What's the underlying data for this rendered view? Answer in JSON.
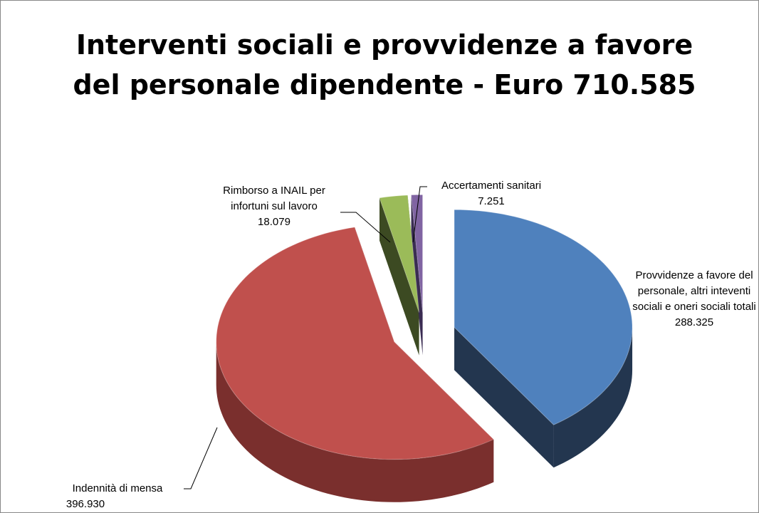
{
  "chart_data": {
    "type": "pie",
    "title": "Interventi sociali e provvidenze a favore del personale dipendente - Euro 710.585",
    "categories": [
      "Provvidenze a favore del personale, altri inteventi sociali e oneri sociali totali",
      "Indennità di mensa",
      "Rimborso a INAIL per infortuni sul lavoro",
      "Accertamenti sanitari"
    ],
    "values": [
      288325,
      396930,
      18079,
      7251
    ],
    "value_labels": [
      "288.325",
      "396.930",
      "18.079",
      "7.251"
    ],
    "colors": [
      "#4f81bd",
      "#c0504d",
      "#9bbb59",
      "#8064a2"
    ],
    "side_colors": [
      "#23364f",
      "#7a2f2d",
      "#3c4a22",
      "#3a2c52"
    ],
    "view": "3d",
    "exploded": true
  }
}
